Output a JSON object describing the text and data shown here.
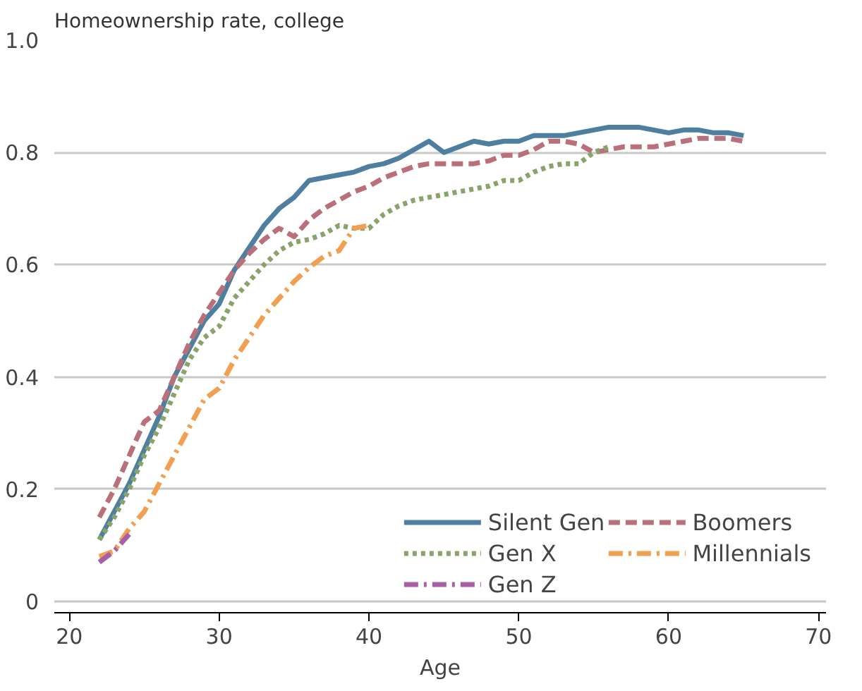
{
  "chart_data": {
    "type": "line",
    "ylabel": "Homeownership rate, college",
    "xlabel": "Age",
    "xlim": [
      19,
      70.5
    ],
    "ylim": [
      -0.02,
      1.0
    ],
    "xticks": [
      20,
      30,
      40,
      50,
      60,
      70
    ],
    "yticks": [
      0,
      {
        "value": 0.2,
        "label": "0.2"
      },
      {
        "value": 0.4,
        "label": "0.4"
      },
      {
        "value": 0.6,
        "label": "0.6"
      },
      {
        "value": 0.8,
        "label": "0.8"
      },
      {
        "value": 1.0,
        "label": "1.0"
      }
    ],
    "grid": "y",
    "legend": "bottom right",
    "series": [
      {
        "name": "Silent Gen",
        "color": "#4e7fa0",
        "line_style": "solid",
        "x": [
          22,
          23,
          24,
          25,
          26,
          27,
          28,
          29,
          30,
          31,
          32,
          33,
          34,
          35,
          36,
          37,
          38,
          39,
          40,
          41,
          42,
          43,
          44,
          45,
          46,
          47,
          48,
          49,
          50,
          51,
          52,
          53,
          54,
          55,
          56,
          57,
          58,
          59,
          60,
          61,
          62,
          63,
          64,
          65
        ],
        "values": [
          0.11,
          0.16,
          0.21,
          0.27,
          0.33,
          0.4,
          0.45,
          0.5,
          0.53,
          0.59,
          0.63,
          0.67,
          0.7,
          0.72,
          0.75,
          0.755,
          0.76,
          0.765,
          0.775,
          0.78,
          0.79,
          0.805,
          0.82,
          0.8,
          0.81,
          0.82,
          0.815,
          0.82,
          0.82,
          0.83,
          0.83,
          0.83,
          0.835,
          0.84,
          0.845,
          0.845,
          0.845,
          0.84,
          0.835,
          0.84,
          0.84,
          0.835,
          0.835,
          0.83
        ]
      },
      {
        "name": "Boomers",
        "color": "#b9707a",
        "line_style": "dashed",
        "x": [
          22,
          23,
          24,
          25,
          26,
          27,
          28,
          29,
          30,
          31,
          32,
          33,
          34,
          35,
          36,
          37,
          38,
          39,
          40,
          41,
          42,
          43,
          44,
          45,
          46,
          47,
          48,
          49,
          50,
          51,
          52,
          53,
          54,
          55,
          56,
          57,
          58,
          59,
          60,
          61,
          62,
          63,
          64,
          65
        ],
        "values": [
          0.15,
          0.2,
          0.26,
          0.32,
          0.34,
          0.4,
          0.46,
          0.51,
          0.55,
          0.59,
          0.62,
          0.645,
          0.665,
          0.65,
          0.68,
          0.7,
          0.715,
          0.73,
          0.74,
          0.755,
          0.765,
          0.775,
          0.78,
          0.78,
          0.78,
          0.78,
          0.785,
          0.795,
          0.795,
          0.805,
          0.82,
          0.82,
          0.815,
          0.8,
          0.805,
          0.81,
          0.81,
          0.81,
          0.815,
          0.82,
          0.825,
          0.825,
          0.825,
          0.82
        ]
      },
      {
        "name": "Gen X",
        "color": "#8aa36a",
        "line_style": "dotted",
        "x": [
          22,
          23,
          24,
          25,
          26,
          27,
          28,
          29,
          30,
          31,
          32,
          33,
          34,
          35,
          36,
          37,
          38,
          39,
          40,
          41,
          42,
          43,
          44,
          45,
          46,
          47,
          48,
          49,
          50,
          51,
          52,
          53,
          54,
          55,
          56
        ],
        "values": [
          0.11,
          0.15,
          0.2,
          0.26,
          0.31,
          0.37,
          0.43,
          0.47,
          0.49,
          0.54,
          0.57,
          0.6,
          0.625,
          0.64,
          0.645,
          0.655,
          0.67,
          0.665,
          0.665,
          0.69,
          0.705,
          0.715,
          0.72,
          0.725,
          0.73,
          0.735,
          0.74,
          0.75,
          0.75,
          0.765,
          0.775,
          0.78,
          0.78,
          0.8,
          0.81
        ]
      },
      {
        "name": "Millennials",
        "color": "#f0a050",
        "line_style": "dashdot",
        "x": [
          22,
          23,
          24,
          25,
          26,
          27,
          28,
          29,
          30,
          31,
          32,
          33,
          34,
          35,
          36,
          37,
          38,
          39,
          40
        ],
        "values": [
          0.08,
          0.09,
          0.13,
          0.16,
          0.21,
          0.26,
          0.31,
          0.36,
          0.38,
          0.43,
          0.47,
          0.51,
          0.54,
          0.57,
          0.595,
          0.615,
          0.625,
          0.665,
          0.67
        ]
      },
      {
        "name": "Gen Z",
        "color": "#a85fa8",
        "line_style": "dashdot",
        "x": [
          22,
          23,
          24
        ],
        "values": [
          0.07,
          0.09,
          0.12
        ]
      }
    ]
  }
}
